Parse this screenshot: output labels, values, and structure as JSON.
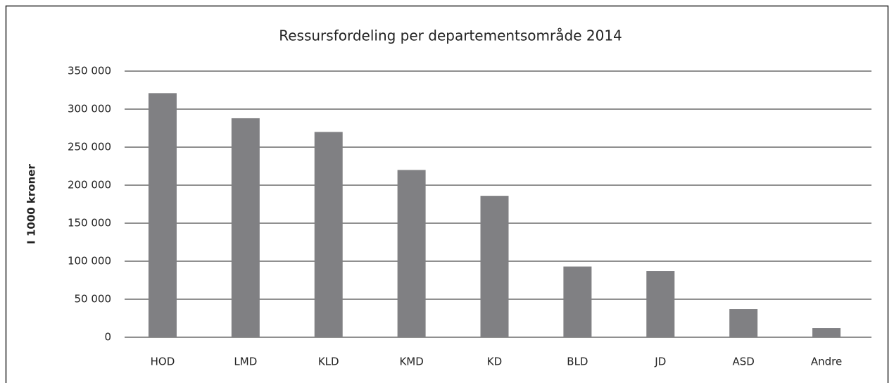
{
  "chart_data": {
    "type": "bar",
    "title": "Ressursfordeling per departementsområde 2014",
    "y_label": "I 1000 kroner",
    "categories": [
      "HOD",
      "LMD",
      "KLD",
      "KMD",
      "KD",
      "BLD",
      "JD",
      "ASD",
      "Andre"
    ],
    "values": [
      321000,
      288000,
      270000,
      220000,
      186000,
      93000,
      87000,
      37000,
      12000
    ],
    "color": "#808083",
    "ylim": [
      0,
      350000
    ],
    "yticks": [
      0,
      {
        "value": 50000,
        "label": "50 000"
      },
      {
        "value": 100000,
        "label": "100 000"
      },
      {
        "value": 150000,
        "label": "150 000"
      },
      {
        "value": 200000,
        "label": "200 000"
      },
      {
        "value": 250000,
        "label": "250 000"
      },
      {
        "value": 300000,
        "label": "300 000"
      },
      {
        "value": 350000,
        "label": "350 000"
      }
    ],
    "grid": true
  }
}
